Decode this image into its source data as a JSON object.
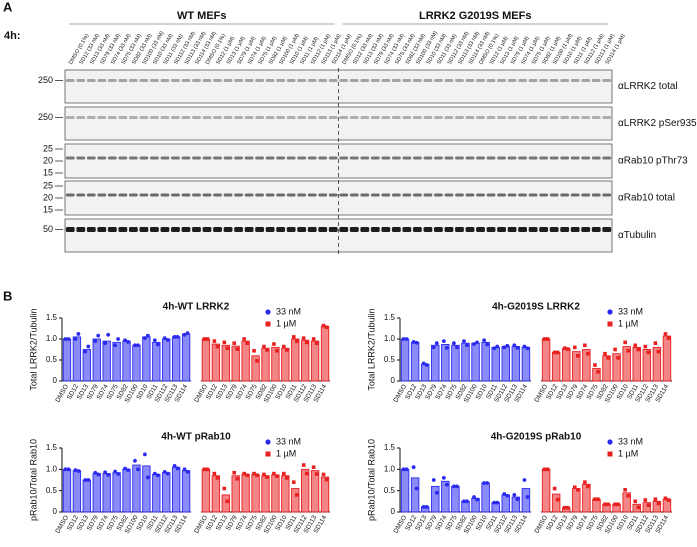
{
  "panel_labels": [
    "A",
    "B"
  ],
  "blot": {
    "timepoint": "4h:",
    "groups": [
      {
        "name": "WT MEFs",
        "lanes": [
          "DMSO (0.1%)",
          "SD12 (33 nM)",
          "SD13 (33 nM)",
          "SD79 (33 nM)",
          "SD74 (33 nM)",
          "SD75 (33 nM)",
          "SD82 (33 nM)",
          "SD100 (33 nM)",
          "SD10 (33 nM)",
          "SD11 (33 nM)",
          "SD112 (33 nM)",
          "SD113 (33 nM)",
          "SD114 (33 nM)",
          "DMSO (0.1%)",
          "SD12 (1 µM)",
          "SD13 (1 µM)",
          "SD79 (1 µM)",
          "SD74 (1 µM)",
          "SD75 (1 µM)",
          "SD82 (1 µM)",
          "SD100 (1 µM)",
          "SD10 (1 µM)",
          "SD11 (1 µM)",
          "SD112 (1 µM)",
          "SD113 (1 µM)",
          "SD114 (1 µM)"
        ]
      },
      {
        "name": "LRRK2 G2019S MEFs",
        "lanes": [
          "DMSO (0.1%)",
          "SD12 (33 nM)",
          "SD13 (33 nM)",
          "SD79 (33 nM)",
          "SD74 (33 nM)",
          "SD75 (33 nM)",
          "SD82 (33 nM)",
          "SD100 (33 nM)",
          "SD10 (33 nM)",
          "SD11 (33 nM)",
          "SD112 (33 nM)",
          "SD113 (33 nM)",
          "SD114 (33 nM)",
          "DMSO (0.1%)",
          "SD12 (1 µM)",
          "SD13 (1 µM)",
          "SD79 (1 µM)",
          "SD74 (1 µM)",
          "SD75 (1 µM)",
          "SD82 (1 µM)",
          "SD100 (1 µM)",
          "SD10 (1 µM)",
          "SD11 (1 µM)",
          "SD112 (1 µM)",
          "SD113 (1 µM)",
          "SD114 (1 µM)"
        ]
      }
    ],
    "rows": [
      {
        "label": "αLRRK2 total",
        "markers": [
          250
        ]
      },
      {
        "label": "αLRRK2 pSer935",
        "markers": [
          250
        ]
      },
      {
        "label": "αRab10 pThr73",
        "markers": [
          25,
          20,
          15
        ]
      },
      {
        "label": "αRab10 total",
        "markers": [
          25,
          20,
          15
        ]
      },
      {
        "label": "αTubulin",
        "markers": [
          50
        ]
      }
    ]
  },
  "chart_data": [
    {
      "type": "bar",
      "title": "4h-WT LRRK2",
      "y_label": "Total LRRK2/Tubulin",
      "categories": [
        "DMSO",
        "SD12",
        "SD13",
        "SD79",
        "SD74",
        "SD75",
        "SD82",
        "SD100",
        "SD10",
        "SD11",
        "SD112",
        "SD113",
        "SD114"
      ],
      "ylim": [
        0,
        1.5
      ],
      "yticks": [
        0,
        0.5,
        {
          "value": 1,
          "label": "1.0"
        },
        1.5
      ],
      "series": [
        {
          "name": "33 nM",
          "color": "#2b2bf0",
          "marker": "circle",
          "values": [
            1.0,
            1.05,
            0.75,
            1.0,
            0.95,
            0.92,
            0.95,
            0.85,
            1.05,
            0.92,
            1.0,
            1.05,
            1.12
          ],
          "points": [
            [
              1.0,
              1.0
            ],
            [
              1.0,
              1.12
            ],
            [
              0.7,
              0.82
            ],
            [
              0.95,
              1.08
            ],
            [
              0.9,
              1.1
            ],
            [
              0.85,
              1.0
            ],
            [
              0.97,
              0.93
            ],
            [
              0.85,
              0.85
            ],
            [
              1.02,
              1.08
            ],
            [
              0.97,
              0.87
            ],
            [
              1.02,
              0.98
            ],
            [
              1.05,
              1.05
            ],
            [
              1.1,
              1.14
            ]
          ]
        },
        {
          "name": "1 µM",
          "color": "#e82020",
          "marker": "square",
          "values": [
            1.0,
            0.88,
            0.85,
            0.83,
            0.95,
            0.6,
            0.78,
            0.8,
            0.78,
            1.0,
            0.97,
            0.95,
            1.3
          ],
          "points": [
            [
              1.0,
              1.0
            ],
            [
              0.95,
              0.82
            ],
            [
              0.92,
              0.78
            ],
            [
              0.9,
              0.76
            ],
            [
              1.0,
              0.9
            ],
            [
              0.72,
              0.48
            ],
            [
              0.82,
              0.74
            ],
            [
              0.88,
              0.72
            ],
            [
              0.82,
              0.74
            ],
            [
              1.05,
              0.95
            ],
            [
              1.02,
              0.92
            ],
            [
              1.0,
              0.9
            ],
            [
              1.32,
              1.28
            ]
          ]
        }
      ]
    },
    {
      "type": "bar",
      "title": "4h-G2019S LRRK2",
      "y_label": "Total LRRK2/Tubulin",
      "categories": [
        "DMSO",
        "SD12",
        "SD13",
        "SD79",
        "SD74",
        "SD75",
        "SD82",
        "SD100",
        "SD10",
        "SD11",
        "SD112",
        "SD113",
        "SD114"
      ],
      "ylim": [
        0,
        1.5
      ],
      "yticks": [
        0,
        0.5,
        {
          "value": 1,
          "label": "1.0"
        },
        1.5
      ],
      "series": [
        {
          "name": "33 nM",
          "color": "#2b2bf0",
          "marker": "circle",
          "values": [
            1.0,
            0.92,
            0.4,
            0.85,
            0.87,
            0.85,
            0.9,
            0.9,
            0.92,
            0.8,
            0.82,
            0.82,
            0.8
          ],
          "points": [
            [
              1.0,
              1.0
            ],
            [
              0.93,
              0.91
            ],
            [
              0.42,
              0.38
            ],
            [
              0.8,
              0.9
            ],
            [
              0.95,
              0.79
            ],
            [
              0.9,
              0.8
            ],
            [
              0.95,
              0.85
            ],
            [
              0.88,
              0.92
            ],
            [
              0.97,
              0.87
            ],
            [
              0.78,
              0.82
            ],
            [
              0.8,
              0.84
            ],
            [
              0.85,
              0.79
            ],
            [
              0.82,
              0.78
            ]
          ]
        },
        {
          "name": "1 µM",
          "color": "#e82020",
          "marker": "square",
          "values": [
            1.0,
            0.68,
            0.77,
            0.7,
            0.75,
            0.3,
            0.6,
            0.65,
            0.82,
            0.8,
            0.75,
            0.8,
            1.07
          ],
          "points": [
            [
              1.0,
              1.0
            ],
            [
              0.68,
              0.68
            ],
            [
              0.78,
              0.76
            ],
            [
              0.8,
              0.6
            ],
            [
              0.85,
              0.65
            ],
            [
              0.38,
              0.22
            ],
            [
              0.65,
              0.55
            ],
            [
              0.75,
              0.55
            ],
            [
              0.92,
              0.72
            ],
            [
              0.85,
              0.75
            ],
            [
              0.82,
              0.68
            ],
            [
              0.9,
              0.7
            ],
            [
              1.12,
              1.02
            ]
          ]
        }
      ]
    },
    {
      "type": "bar",
      "title": "4h-WT pRab10",
      "y_label": "pRab10/Total Rab10",
      "categories": [
        "DMSO",
        "SD12",
        "SD13",
        "SD79",
        "SD74",
        "SD75",
        "SD82",
        "SD100",
        "SD10",
        "SD11",
        "SD112",
        "SD113",
        "SD114"
      ],
      "ylim": [
        0,
        1.5
      ],
      "yticks": [
        0,
        0.5,
        {
          "value": 1,
          "label": "1.0"
        },
        1.5
      ],
      "series": [
        {
          "name": "33 nM",
          "color": "#2b2bf0",
          "marker": "circle",
          "values": [
            1.0,
            0.97,
            0.75,
            0.9,
            0.9,
            0.92,
            1.0,
            1.1,
            1.08,
            0.88,
            0.92,
            1.05,
            0.97
          ],
          "points": [
            [
              1.0,
              1.0
            ],
            [
              0.98,
              0.96
            ],
            [
              0.75,
              0.75
            ],
            [
              0.92,
              0.88
            ],
            [
              0.93,
              0.87
            ],
            [
              0.95,
              0.89
            ],
            [
              1.02,
              0.98
            ],
            [
              1.2,
              1.0
            ],
            [
              1.35,
              0.81
            ],
            [
              0.9,
              0.86
            ],
            [
              0.94,
              0.9
            ],
            [
              1.08,
              1.02
            ],
            [
              1.0,
              0.94
            ]
          ]
        },
        {
          "name": "1 µM",
          "color": "#e82020",
          "marker": "square",
          "values": [
            1.0,
            0.85,
            0.4,
            0.85,
            0.88,
            0.88,
            0.85,
            0.87,
            0.85,
            0.55,
            1.0,
            0.97,
            0.82
          ],
          "points": [
            [
              1.0,
              1.0
            ],
            [
              0.9,
              0.8
            ],
            [
              0.55,
              0.25
            ],
            [
              0.92,
              0.78
            ],
            [
              0.9,
              0.86
            ],
            [
              0.9,
              0.86
            ],
            [
              0.88,
              0.82
            ],
            [
              0.9,
              0.84
            ],
            [
              0.9,
              0.8
            ],
            [
              0.7,
              0.4
            ],
            [
              1.1,
              0.9
            ],
            [
              1.05,
              0.89
            ],
            [
              0.88,
              0.76
            ]
          ]
        }
      ]
    },
    {
      "type": "bar",
      "title": "4h-G2019S pRab10",
      "y_label": "pRab10/Total Rab10",
      "categories": [
        "DMSO",
        "SD12",
        "SD13",
        "SD79",
        "SD74",
        "SD75",
        "SD82",
        "SD100",
        "SD10",
        "SD11",
        "SD112",
        "SD113",
        "SD114"
      ],
      "ylim": [
        0,
        1.5
      ],
      "yticks": [
        0,
        0.5,
        {
          "value": 1,
          "label": "1.0"
        },
        1.5
      ],
      "series": [
        {
          "name": "33 nM",
          "color": "#2b2bf0",
          "marker": "circle",
          "values": [
            1.0,
            0.8,
            0.12,
            0.6,
            0.72,
            0.6,
            0.25,
            0.32,
            0.68,
            0.22,
            0.4,
            0.35,
            0.55
          ],
          "points": [
            [
              1.0,
              1.0
            ],
            [
              1.05,
              0.55
            ],
            [
              0.12,
              0.12
            ],
            [
              0.75,
              0.45
            ],
            [
              0.8,
              0.64
            ],
            [
              0.6,
              0.6
            ],
            [
              0.25,
              0.25
            ],
            [
              0.35,
              0.29
            ],
            [
              0.68,
              0.68
            ],
            [
              0.22,
              0.22
            ],
            [
              0.42,
              0.38
            ],
            [
              0.4,
              0.3
            ],
            [
              0.75,
              0.35
            ]
          ]
        },
        {
          "name": "1 µM",
          "color": "#e82020",
          "marker": "square",
          "values": [
            1.0,
            0.42,
            0.1,
            0.55,
            0.65,
            0.3,
            0.18,
            0.18,
            0.45,
            0.18,
            0.22,
            0.25,
            0.3
          ],
          "points": [
            [
              1.0,
              1.0
            ],
            [
              0.55,
              0.29
            ],
            [
              0.1,
              0.1
            ],
            [
              0.58,
              0.52
            ],
            [
              0.7,
              0.6
            ],
            [
              0.3,
              0.3
            ],
            [
              0.18,
              0.18
            ],
            [
              0.18,
              0.18
            ],
            [
              0.52,
              0.38
            ],
            [
              0.25,
              0.11
            ],
            [
              0.28,
              0.16
            ],
            [
              0.3,
              0.2
            ],
            [
              0.32,
              0.28
            ]
          ]
        }
      ]
    }
  ]
}
